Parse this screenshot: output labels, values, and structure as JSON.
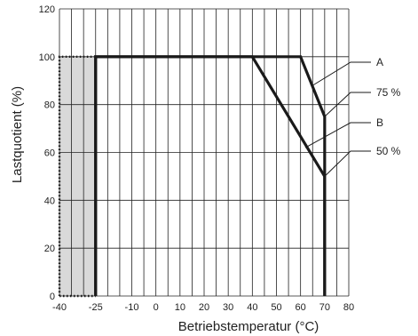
{
  "chart_data": {
    "type": "line",
    "title": "",
    "xlabel": "Betriebstemperatur (°C)",
    "ylabel": "Lastquotient (%)",
    "xlim": [
      -40,
      80
    ],
    "ylim": [
      0,
      120
    ],
    "x_ticks": [
      -40,
      -25,
      -10,
      0,
      10,
      20,
      30,
      40,
      50,
      60,
      70,
      80
    ],
    "x_tick_labels": [
      "-40",
      "-25",
      "-10",
      "0",
      "10",
      "20",
      "30",
      "40",
      "50",
      "60",
      "70",
      "80"
    ],
    "y_ticks": [
      0,
      20,
      40,
      60,
      80,
      100,
      120
    ],
    "y_tick_labels": [
      "0",
      "20",
      "40",
      "60",
      "80",
      "100",
      "120"
    ],
    "grid": true,
    "series": [
      {
        "name": "A",
        "x": [
          -25,
          -25,
          60,
          70,
          70
        ],
        "y": [
          0,
          100,
          100,
          75,
          0
        ]
      },
      {
        "name": "B",
        "x": [
          -25,
          -25,
          40,
          70,
          70
        ],
        "y": [
          0,
          100,
          100,
          50,
          0
        ]
      }
    ],
    "shaded_region": {
      "x": [
        -40,
        -25
      ],
      "y": [
        0,
        100
      ],
      "color": "#d9d9d9"
    },
    "annotations": [
      {
        "text": "A",
        "target": [
          65,
          88
        ]
      },
      {
        "text": "75 %",
        "target": [
          70,
          75
        ]
      },
      {
        "text": "B",
        "target": [
          62,
          62
        ]
      },
      {
        "text": "50 %",
        "target": [
          70,
          50
        ]
      }
    ],
    "colors": {
      "line": "#1a1a1a",
      "grid": "#222222",
      "shade": "#d9d9d9"
    }
  }
}
